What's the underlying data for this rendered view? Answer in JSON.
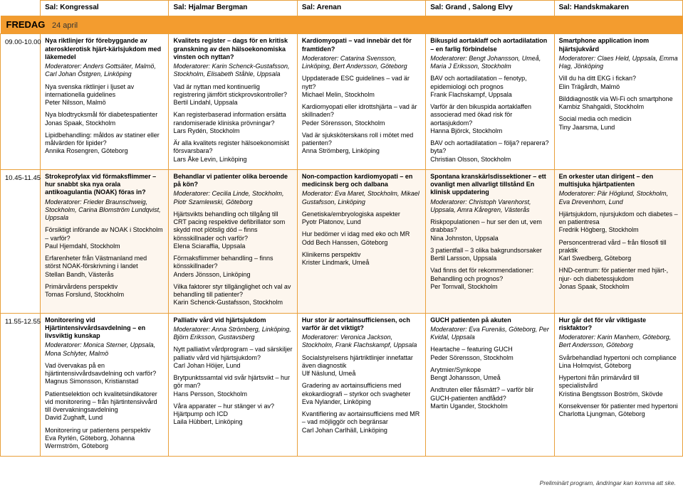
{
  "rooms": [
    "Sal: Kongressal",
    "Sal: Hjalmar Bergman",
    "Sal: Arenan",
    "Sal: Grand , Salong Elvy",
    "Sal: Handskmakaren"
  ],
  "day": {
    "label": "FREDAG",
    "date": "24 april"
  },
  "rows": [
    {
      "time": "09.00-10.00",
      "tint": false,
      "cells": [
        {
          "title": "Nya riktlinjer för förebyggande av aterosklerotisk hjärt-kärlsjukdom med läkemedel",
          "mods": "Moderatorer: Anders Gottsäter, Malmö, Carl Johan Östgren, Linköping",
          "items": [
            {
              "q": "Nya svenska riktlinjer i ljuset av internationella guidelines",
              "sp": "Peter Nilsson, Malmö"
            },
            {
              "q": "Nya blodtrycksmål för diabetespatienter",
              "sp": "Jonas Spaak, Stockholm"
            },
            {
              "q": "Lipidbehandling: måldos av statiner eller målvärden för lipider?",
              "sp": "Annika Rosengren, Göteborg"
            }
          ]
        },
        {
          "title": "Kvalitets register – dags för en kritisk granskning av den hälsoekonomiska vinsten och nyttan?",
          "mods": "Moderatorer: Karin Schenck-Gustafsson, Stockholm, Elisabeth Ståhle, Uppsala",
          "items": [
            {
              "q": "Vad är nyttan med kontinuerlig registrering jämfört stickprovskontroller?",
              "sp": "Bertil Lindahl, Uppsala"
            },
            {
              "q": "Kan registerbaserad information ersätta randomiserade kliniska prövningar?",
              "sp": "Lars Rydén, Stockholm"
            },
            {
              "q": "Är alla kvalitets register hälsoekonomiskt försvarsbara?",
              "sp": "Lars Åke Levin, Linköping"
            }
          ]
        },
        {
          "title": "Kardiomyopati – vad innebär det för framtiden?",
          "mods": "Moderatorer: Catarina Svensson, Linköping, Bert Andersson, Göteborg",
          "items": [
            {
              "q": "Uppdaterade ESC guidelines – vad är nytt?",
              "sp": "Michael Melin, Stockholm"
            },
            {
              "q": "Kardiomyopati eller idrottshjärta – vad är skillnaden?",
              "sp": "Peder Sörensson, Stockholm"
            },
            {
              "q": "Vad är sjuksköterskans roll i mötet med patienten?",
              "sp": "Anna Strömberg, Linköping"
            }
          ]
        },
        {
          "title": "Bikuspid aortaklaff och aortadilatation – en farlig förbindelse",
          "mods": "Moderatorer: Bengt Johansson, Umeå, Maria J Eriksson, Stockholm",
          "items": [
            {
              "q": "BAV och aortadilatation – fenotyp, epidemiologi och prognos",
              "sp": "Frank Flachskampf, Uppsala"
            },
            {
              "q": "Varför är den bikuspida aortaklaffen associerad med ökad risk för aortasjukdom?",
              "sp": "Hanna Björck, Stockholm"
            },
            {
              "q": "BAV och aortadilatation – följa? reparera? byta?",
              "sp": "Christian Olsson, Stockholm"
            }
          ]
        },
        {
          "title": "Smartphone application inom hjärtsjukvård",
          "mods": "Moderatorer: Claes Held, Uppsala, Emma Hag, Jönköping",
          "items": [
            {
              "q": "Vill du ha ditt EKG i fickan?",
              "sp": "Elin Trägårdh, Malmö"
            },
            {
              "q": "Bilddiagnostik via Wi-Fi och smartphone",
              "sp": "Kambiz Shahgaldi, Stockholm"
            },
            {
              "q": "Social media och medicin",
              "sp": "Tiny Jaarsma, Lund"
            }
          ]
        }
      ]
    },
    {
      "time": "10.45-11.45",
      "tint": true,
      "cells": [
        {
          "title": "Strokeprofylax vid förmaksflimmer – hur snabbt ska nya orala antikoagulantia (NOAK) föras in?",
          "mods": "Moderatorer: Frieder Braunschweig, Stockholm, Carina Blomström Lundqvist, Uppsala",
          "items": [
            {
              "q": "Försiktigt införande av NOAK i Stockholm – varför?",
              "sp": "Paul Hjemdahl, Stockholm"
            },
            {
              "q": "Erfarenheter från Västmanland med störst NOAK-förskrivning i landet",
              "sp": "Stellan Bandh, Västerås"
            },
            {
              "q": "Primärvårdens perspektiv",
              "sp": "Tomas Forslund, Stockholm"
            }
          ]
        },
        {
          "title": "Behandlar vi patienter olika beroende på kön?",
          "mods": "Moderatorer: Cecilia Linde, Stockholm, Piotr Szamlewski, Göteborg",
          "items": [
            {
              "q": "Hjärtsvikts behandling och tillgång till CRT pacing respektive defibrillator som skydd mot plötslig död – finns könsskillnader och varför?",
              "sp": "Elena Sciaraffia, Uppsala"
            },
            {
              "q": "Förmaksflimmer behandling – finns könsskillnader?",
              "sp": "Anders Jönsson, Linköping"
            },
            {
              "q": "Vilka faktorer styr tillgänglighet och val av behandling till patienter?",
              "sp": "Karin Schenck-Gustafsson, Stockholm"
            }
          ]
        },
        {
          "title": "Non-compaction kardiomyopati – en medicinsk berg och dalbana",
          "mods": "Moderator: Eva Maret, Stockholm, Mikael Gustafsson, Linköping",
          "items": [
            {
              "q": "Genetiska/embryologiska aspekter",
              "sp": "Pyotr Platonov, Lund"
            },
            {
              "q": "Hur bedömer vi idag med eko och MR",
              "sp": "Odd Bech Hanssen, Göteborg"
            },
            {
              "q": "Klinikerns perspektiv",
              "sp": "Krister Lindmark, Umeå"
            }
          ]
        },
        {
          "title": "Spontana kranskärlsdissektioner – ett ovanligt men allvarligt tillstånd En klinisk uppdatering",
          "mods": "Moderatorer: Christoph Varenhorst, Uppsala, Amra Kåregren, Västerås",
          "items": [
            {
              "q": "Riskpopulationen – hur ser den ut, vem drabbas?",
              "sp": "Nina Johnston, Uppsala"
            },
            {
              "q": "3 patientfall – 3 olika bakgrundsorsaker",
              "sp": "Bertil Larsson, Uppsala"
            },
            {
              "q": "Vad finns det för rekommendationer: Behandling och prognos?",
              "sp": "Per Tornvall, Stockholm"
            }
          ]
        },
        {
          "title": "En orkester utan dirigent – den multisjuka hjärtpatienten",
          "mods": "Moderatorer: Pär Höglund, Stockholm, Eva Drevenhorn, Lund",
          "items": [
            {
              "q": "Hjärtsjukdom, njursjukdom och diabetes – en patientresa",
              "sp": "Fredrik Högberg, Stockholm"
            },
            {
              "q": "Personcentrerad vård – från filosofi till praktik",
              "sp": "Karl Swedberg, Göteborg"
            },
            {
              "q": "HND-centrum: för patienter med hjärt-, njur- och diabetessjukdom",
              "sp": "Jonas Spaak, Stockholm"
            }
          ]
        }
      ]
    },
    {
      "time": "11.55-12.55",
      "tint": false,
      "cells": [
        {
          "title": "Monitorering vid Hjärtintensivvårdsavdelning – en livsviktig kunskap",
          "mods": "Moderatorer: Monica Sterner, Uppsala, Mona Schlyter, Malmö",
          "items": [
            {
              "q": "Vad övervakas på en hjärtintensivvårdsavdelning och varför?",
              "sp": "Magnus Simonsson, Kristianstad"
            },
            {
              "q": "Patientselektion och kvalitetsindikatorer vid monitorering – från hjärtintensivvård till övervakningsavdelning",
              "sp": "David Zughaft, Lund"
            },
            {
              "q": "Monitorering ur patientens perspektiv",
              "sp": "Eva Ryrlén, Göteborg, Johanna Wermström, Göteborg"
            }
          ]
        },
        {
          "title": "Palliativ vård vid hjärtsjukdom",
          "mods": "Moderatorer: Anna Strömberg, Linköping, Björn Eriksson, Gustavsberg",
          "items": [
            {
              "q": "Nytt palliativt vårdprogram – vad särskiljer palliativ vård vid hjärtsjukdom?",
              "sp": "Carl Johan Höijer, Lund"
            },
            {
              "q": "Brytpunktssamtal vid svår hjärtsvikt – hur gör man?",
              "sp": "Hans Persson, Stockholm"
            },
            {
              "q": "Våra apparater – hur stänger vi av? Hjärtpump och ICD",
              "sp": "Laila Hübbert, Linköping"
            }
          ]
        },
        {
          "title": "Hur stor är aortainsufficiensen, och varför är det viktigt?",
          "mods": "Moderatorer: Veronica Jackson, Stockholm, Frank Flachskampf, Uppsala",
          "items": [
            {
              "q": "Socialstyrelsens hjärtriktlinjer innefattar även diagnostik",
              "sp": "Ulf Näslund, Umeå"
            },
            {
              "q": "Gradering av aortainsufficiens med ekokardiografi – styrkor och svagheter",
              "sp": "Eva Nylander, Linköping"
            },
            {
              "q": "Kvantifiering av aortainsufficiens med MR – vad möjliggör och begränsar",
              "sp": "Carl Johan Carlhäll, Linköping"
            }
          ]
        },
        {
          "title": "GUCH patienten på akuten",
          "mods": "Moderatorer: Eva Furenäs, Göteborg, Per Kvidal, Uppsala",
          "items": [
            {
              "q": "Heartache – featuring GUCH",
              "sp": "Peder Sörensson, Stockholm"
            },
            {
              "q": "Arytmier/Synkope",
              "sp": "Bengt Johansson, Umeå"
            },
            {
              "q": "Andtruten eller flåsmätt? – varför blir GUCH-patienten andfådd?",
              "sp": "Martin Ugander, Stockholm"
            }
          ]
        },
        {
          "title": "Hur går det för vår viktigaste riskfaktor?",
          "mods": "Moderatorer: Karin Manhem, Göteborg, Bert Andersson, Göteborg",
          "items": [
            {
              "q": "Svårbehandlad hypertoni och compliance",
              "sp": "Lina Holmqvist, Göteborg"
            },
            {
              "q": "Hypertoni från primärvård till specialistvård",
              "sp": "Kristina Bengtsson Boström, Skövde"
            },
            {
              "q": "Konsekvenser för patienter med hypertoni",
              "sp": "Charlotta Ljungman, Göteborg"
            }
          ]
        }
      ]
    }
  ],
  "footer": "Preliminärt program, ändringar kan komma att ske."
}
